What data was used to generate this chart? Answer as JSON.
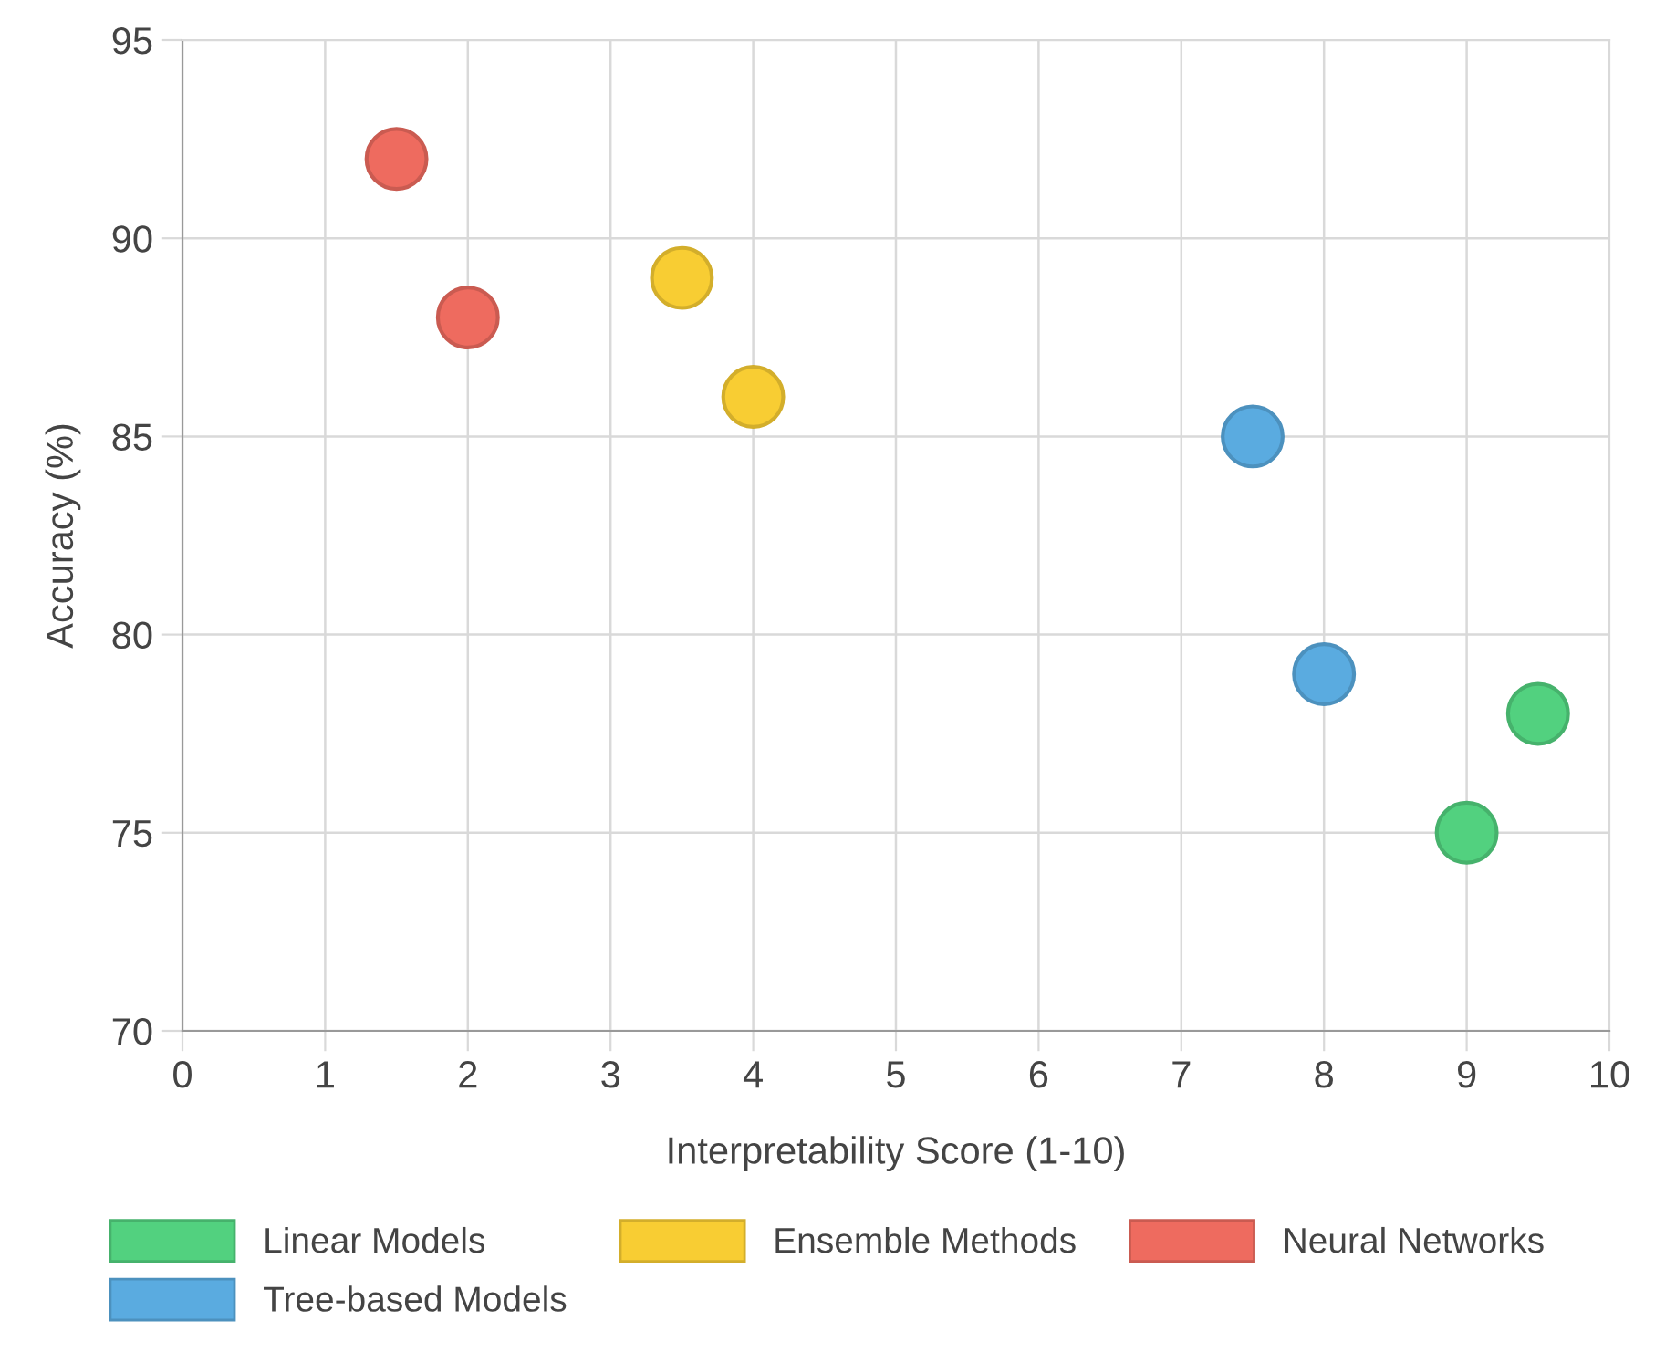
{
  "chart_data": {
    "type": "scatter",
    "xlabel": "Interpretability Score (1-10)",
    "ylabel": "Accuracy (%)",
    "xlim": [
      0,
      10
    ],
    "xticks": [
      0,
      1,
      2,
      3,
      4,
      5,
      6,
      7,
      8,
      9,
      10
    ],
    "ylim": [
      70,
      95
    ],
    "yticks": [
      70,
      75,
      80,
      85,
      90,
      95
    ],
    "grid": true,
    "legend": "bottom",
    "marker": "circle",
    "series": [
      {
        "name": "Linear Models",
        "color": "#52d17f",
        "x": [
          9,
          9.5
        ],
        "values": [
          75,
          78
        ]
      },
      {
        "name": "Tree-based Models",
        "color": "#5aabe0",
        "x": [
          7.5,
          8
        ],
        "values": [
          85,
          79
        ]
      },
      {
        "name": "Ensemble Methods",
        "color": "#f8cd33",
        "x": [
          3.5,
          4
        ],
        "values": [
          89,
          86
        ]
      },
      {
        "name": "Neural Networks",
        "color": "#ee6b5f",
        "x": [
          1.5,
          2
        ],
        "values": [
          92,
          88
        ]
      }
    ]
  }
}
